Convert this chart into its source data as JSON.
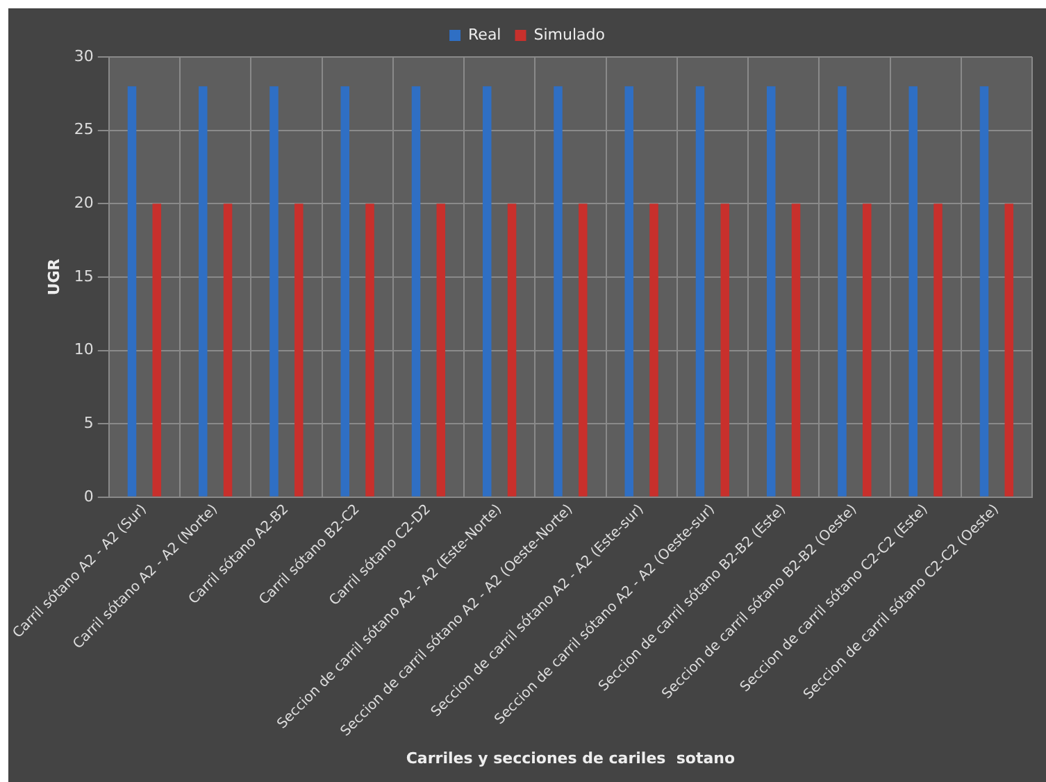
{
  "chart_data": {
    "type": "bar",
    "xlabel": "Carriles y secciones de cariles  sotano",
    "ylabel": "UGR",
    "categories": [
      "Carril sótano A2 - A2 (Sur)",
      "Carril sótano A2 - A2 (Norte)",
      "Carril sótano A2-B2",
      "Carril sótano B2-C2",
      "Carril sótano C2-D2",
      "Seccion de carril sótano A2 - A2 (Este-Norte)",
      "Seccion de carril sótano A2 - A2 (Oeste-Norte)",
      "Seccion de carril sótano A2 - A2 (Este-sur)",
      "Seccion de carril sótano A2 - A2 (Oeste-sur)",
      "Seccion de carril sótano B2-B2 (Este)",
      "Seccion de carril sótano B2-B2 (Oeste)",
      "Seccion de carril sótano C2-C2 (Este)",
      "Seccion de carril sótano C2-C2 (Oeste)"
    ],
    "series": [
      {
        "name": "Real",
        "color": "#2f6fc4",
        "values": [
          28,
          28,
          28,
          28,
          28,
          28,
          28,
          28,
          28,
          28,
          28,
          28,
          28
        ]
      },
      {
        "name": "Simulado",
        "color": "#c8302c",
        "values": [
          20,
          20,
          20,
          20,
          20,
          20,
          20,
          20,
          20,
          20,
          20,
          20,
          20
        ]
      }
    ],
    "ylim": [
      0,
      30
    ],
    "yticks": [
      0,
      5,
      10,
      15,
      20,
      25,
      30
    ],
    "grid": true,
    "legend": "top"
  }
}
